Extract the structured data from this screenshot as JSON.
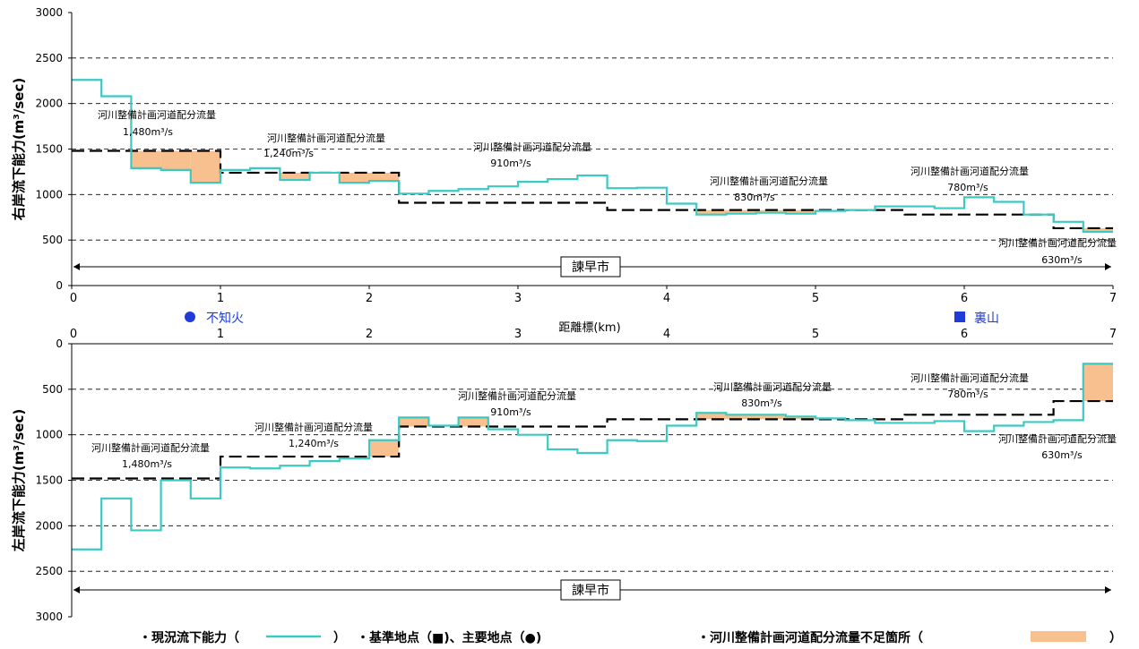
{
  "colors": {
    "current_capacity": "#3cc9c2",
    "plan_flow": "#000000",
    "shortage": "#f9c08f",
    "station": "#1f3cd6"
  },
  "x_axis": {
    "label": "距離標(km)",
    "ticks": [
      "0",
      "1",
      "2",
      "3",
      "4",
      "5",
      "6",
      "7"
    ]
  },
  "stations": [
    {
      "marker": "circle",
      "label": "不知火",
      "x": 0.8
    },
    {
      "marker": "square",
      "label": "裏山",
      "x": 6.1
    }
  ],
  "legend": {
    "current": "・現況流下能力（",
    "current_close": "）",
    "station": "・基準地点（■)、主要地点（●)",
    "shortage": "・河川整備計画河道配分流量不足箇所（",
    "shortage_close": "）"
  },
  "chart_data": [
    {
      "type": "line",
      "ylabel": "右岸流下能力(m³/sec)",
      "ylim": [
        0,
        3000
      ],
      "y_ticks": [
        "0",
        "500",
        "1000",
        "1500",
        "2000",
        "2500",
        "3000"
      ],
      "x_ticks": [
        "0",
        "1",
        "2",
        "3",
        "4",
        "5",
        "6",
        "7"
      ],
      "city_label": "諫早市",
      "series": [
        {
          "name": "現況流下能力",
          "x": [
            0,
            0.2,
            0.4,
            0.6,
            0.8,
            1.0,
            1.2,
            1.4,
            1.6,
            1.8,
            2.0,
            2.2,
            2.4,
            2.6,
            2.8,
            3.0,
            3.2,
            3.4,
            3.6,
            3.8,
            4.0,
            4.2,
            4.4,
            4.6,
            4.8,
            5.0,
            5.2,
            5.4,
            5.6,
            5.8,
            6.0,
            6.2,
            6.4,
            6.6,
            6.8,
            7.0
          ],
          "y": [
            2260,
            2080,
            1290,
            1270,
            1130,
            1270,
            1290,
            1160,
            1240,
            1130,
            1150,
            1010,
            1040,
            1060,
            1090,
            1140,
            1170,
            1210,
            1070,
            1075,
            900,
            780,
            790,
            800,
            790,
            820,
            830,
            870,
            870,
            850,
            970,
            920,
            780,
            700,
            590,
            590
          ]
        },
        {
          "name": "河川整備計画河道配分流量",
          "x": [
            0,
            1.0,
            2.2,
            3.6,
            5.6,
            6.6,
            7.0
          ],
          "y": [
            1480,
            1240,
            910,
            830,
            780,
            630,
            630
          ]
        }
      ],
      "annotations": [
        {
          "text": "河川整備計画河道配分流量",
          "value": "1,480m³/s"
        },
        {
          "text": "河川整備計画河道配分流量",
          "value": "1,240m³/s"
        },
        {
          "text": "河川整備計画河道配分流量",
          "value": "910m³/s"
        },
        {
          "text": "河川整備計画河道配分流量",
          "value": "830m³/s"
        },
        {
          "text": "河川整備計画河道配分流量",
          "value": "780m³/s"
        },
        {
          "text": "河川整備計画河道配分流量",
          "value": "630m³/s"
        }
      ]
    },
    {
      "type": "line",
      "ylabel": "左岸流下能力(m³/sec)",
      "ylim": [
        0,
        3000
      ],
      "y_inverted": true,
      "y_ticks": [
        "0",
        "500",
        "1000",
        "1500",
        "2000",
        "2500",
        "3000"
      ],
      "x_ticks": [
        "0",
        "1",
        "2",
        "3",
        "4",
        "5",
        "6",
        "7"
      ],
      "city_label": "諫早市",
      "series": [
        {
          "name": "現況流下能力",
          "x": [
            0,
            0.2,
            0.4,
            0.6,
            0.8,
            1.0,
            1.2,
            1.4,
            1.6,
            1.8,
            2.0,
            2.2,
            2.4,
            2.6,
            2.8,
            3.0,
            3.2,
            3.4,
            3.6,
            3.8,
            4.0,
            4.2,
            4.4,
            4.6,
            4.8,
            5.0,
            5.2,
            5.4,
            5.6,
            5.8,
            6.0,
            6.2,
            6.4,
            6.6,
            6.8,
            7.0
          ],
          "y": [
            2260,
            1700,
            2050,
            1500,
            1700,
            1360,
            1370,
            1340,
            1290,
            1260,
            1060,
            810,
            900,
            810,
            940,
            1000,
            1160,
            1200,
            1060,
            1070,
            900,
            760,
            780,
            780,
            800,
            820,
            840,
            870,
            870,
            850,
            960,
            900,
            860,
            840,
            220,
            220
          ]
        },
        {
          "name": "河川整備計画河道配分流量",
          "x": [
            0,
            1.0,
            2.2,
            3.6,
            5.6,
            6.6,
            7.0
          ],
          "y": [
            1480,
            1240,
            910,
            830,
            780,
            630,
            630
          ]
        }
      ],
      "annotations": [
        {
          "text": "河川整備計画河道配分流量",
          "value": "1,480m³/s"
        },
        {
          "text": "河川整備計画河道配分流量",
          "value": "1,240m³/s"
        },
        {
          "text": "河川整備計画河道配分流量",
          "value": "910m³/s"
        },
        {
          "text": "河川整備計画河道配分流量",
          "value": "830m³/s"
        },
        {
          "text": "河川整備計画河道配分流量",
          "value": "780m³/s"
        },
        {
          "text": "河川整備計画河道配分流量",
          "value": "630m³/s"
        }
      ]
    }
  ]
}
